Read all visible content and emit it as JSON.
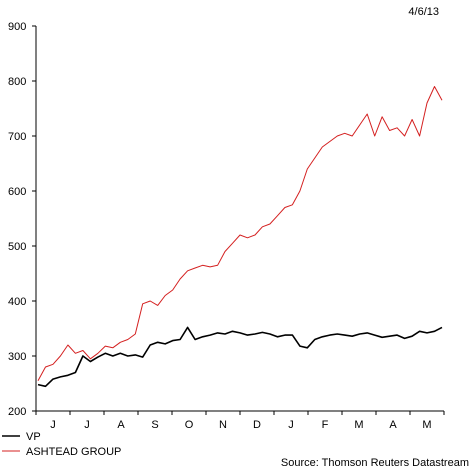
{
  "date_label": "4/6/13",
  "source": "Source: Thomson Reuters Datastream",
  "chart_data": {
    "type": "line",
    "title": "",
    "xlabel": "",
    "ylabel": "",
    "ylim": [
      200,
      900
    ],
    "y_ticks": [
      200,
      300,
      400,
      500,
      600,
      700,
      800,
      900
    ],
    "x_ticks": [
      "J",
      "J",
      "A",
      "S",
      "O",
      "N",
      "D",
      "J",
      "F",
      "M",
      "A",
      "M"
    ],
    "legend_position": "bottom-left",
    "grid": false,
    "series": [
      {
        "name": "VP",
        "color": "#000000",
        "values": [
          248,
          245,
          258,
          262,
          265,
          270,
          300,
          290,
          298,
          305,
          300,
          305,
          300,
          302,
          298,
          320,
          325,
          322,
          328,
          330,
          352,
          330,
          335,
          338,
          342,
          340,
          345,
          342,
          338,
          340,
          343,
          340,
          335,
          338,
          338,
          318,
          315,
          330,
          335,
          338,
          340,
          338,
          336,
          340,
          342,
          338,
          334,
          336,
          338,
          332,
          336,
          345,
          342,
          345,
          352
        ]
      },
      {
        "name": "ASHTEAD GROUP",
        "color": "#d42020",
        "values": [
          255,
          280,
          285,
          300,
          320,
          305,
          310,
          295,
          305,
          318,
          315,
          325,
          330,
          340,
          395,
          400,
          392,
          410,
          420,
          440,
          455,
          460,
          465,
          462,
          465,
          490,
          505,
          520,
          515,
          520,
          535,
          540,
          555,
          570,
          575,
          600,
          640,
          660,
          680,
          690,
          700,
          705,
          700,
          720,
          740,
          700,
          735,
          710,
          715,
          700,
          730,
          700,
          760,
          790,
          765
        ]
      }
    ]
  }
}
